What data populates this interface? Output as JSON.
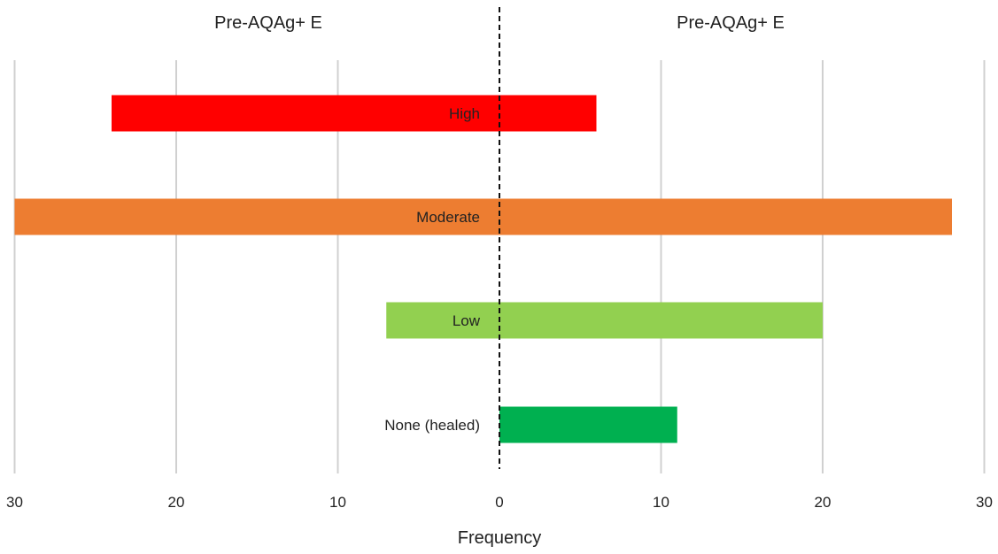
{
  "chart_data": {
    "type": "bar",
    "orientation": "horizontal",
    "layout": "diverging",
    "xlabel": "Frequency",
    "ylabel": "",
    "grid": true,
    "xlim": [
      -30,
      30
    ],
    "xticks": [
      -30,
      -20,
      -10,
      0,
      10,
      20,
      30
    ],
    "tick_labels": [
      "30",
      "20",
      "10",
      "0",
      "10",
      "20",
      "30"
    ],
    "panel_titles": [
      "Pre-AQAg+ E",
      "Pre-AQAg+ E"
    ],
    "categories": [
      "High",
      "Moderate",
      "Low",
      "None (healed)"
    ],
    "series": [
      {
        "values": [
          24,
          30,
          7,
          0
        ]
      },
      {
        "values": [
          6,
          28,
          20,
          11
        ]
      }
    ],
    "colors": [
      "#ff0000",
      "#ed7d31",
      "#92d050",
      "#00b050"
    ],
    "zero_line": "dashed"
  }
}
